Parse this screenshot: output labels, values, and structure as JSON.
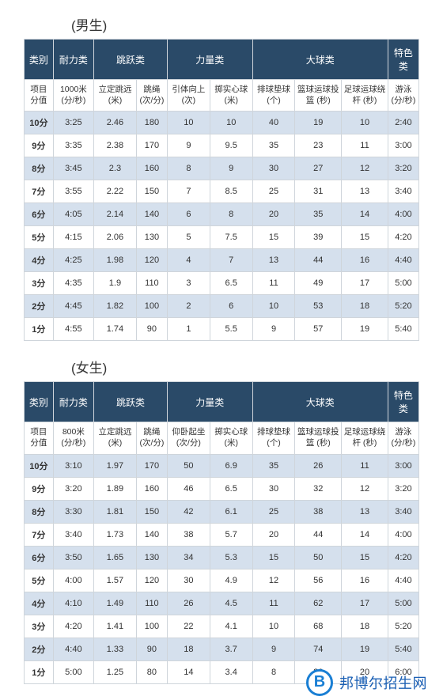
{
  "titles": {
    "male": "(男生)",
    "female": "(女生)"
  },
  "categories": {
    "score": "类别",
    "endurance": "耐力类",
    "jump": "跳跃类",
    "strength": "力量类",
    "ball": "大球类",
    "special": "特色类"
  },
  "male": {
    "subheaders": {
      "score": "项目\n分值",
      "endurance": "1000米\n(分/秒)",
      "jump1": "立定跳远\n(米)",
      "jump2": "跳绳\n(次/分)",
      "str1": "引体向上\n(次)",
      "str2": "掷实心球\n(米)",
      "ball1": "排球垫球\n(个)",
      "ball2": "篮球运球投篮\n(秒)",
      "ball3": "足球运球绕杆\n(秒)",
      "special": "游泳\n(分/秒)"
    },
    "rows": [
      {
        "s": "10分",
        "v": [
          "3:25",
          "2.46",
          "180",
          "10",
          "10",
          "40",
          "19",
          "10",
          "2:40"
        ]
      },
      {
        "s": "9分",
        "v": [
          "3:35",
          "2.38",
          "170",
          "9",
          "9.5",
          "35",
          "23",
          "11",
          "3:00"
        ]
      },
      {
        "s": "8分",
        "v": [
          "3:45",
          "2.3",
          "160",
          "8",
          "9",
          "30",
          "27",
          "12",
          "3:20"
        ]
      },
      {
        "s": "7分",
        "v": [
          "3:55",
          "2.22",
          "150",
          "7",
          "8.5",
          "25",
          "31",
          "13",
          "3:40"
        ]
      },
      {
        "s": "6分",
        "v": [
          "4:05",
          "2.14",
          "140",
          "6",
          "8",
          "20",
          "35",
          "14",
          "4:00"
        ]
      },
      {
        "s": "5分",
        "v": [
          "4:15",
          "2.06",
          "130",
          "5",
          "7.5",
          "15",
          "39",
          "15",
          "4:20"
        ]
      },
      {
        "s": "4分",
        "v": [
          "4:25",
          "1.98",
          "120",
          "4",
          "7",
          "13",
          "44",
          "16",
          "4:40"
        ]
      },
      {
        "s": "3分",
        "v": [
          "4:35",
          "1.9",
          "110",
          "3",
          "6.5",
          "11",
          "49",
          "17",
          "5:00"
        ]
      },
      {
        "s": "2分",
        "v": [
          "4:45",
          "1.82",
          "100",
          "2",
          "6",
          "10",
          "53",
          "18",
          "5:20"
        ]
      },
      {
        "s": "1分",
        "v": [
          "4:55",
          "1.74",
          "90",
          "1",
          "5.5",
          "9",
          "57",
          "19",
          "5:40"
        ]
      }
    ]
  },
  "female": {
    "subheaders": {
      "score": "项目\n分值",
      "endurance": "800米\n(分/秒)",
      "jump1": "立定跳远\n(米)",
      "jump2": "跳绳\n(次/分)",
      "str1": "仰卧起坐\n(次/分)",
      "str2": "掷实心球\n(米)",
      "ball1": "排球垫球\n(个)",
      "ball2": "篮球运球投篮\n(秒)",
      "ball3": "足球运球绕杆\n(秒)",
      "special": "游泳\n(分/秒)"
    },
    "rows": [
      {
        "s": "10分",
        "v": [
          "3:10",
          "1.97",
          "170",
          "50",
          "6.9",
          "35",
          "26",
          "11",
          "3:00"
        ]
      },
      {
        "s": "9分",
        "v": [
          "3:20",
          "1.89",
          "160",
          "46",
          "6.5",
          "30",
          "32",
          "12",
          "3:20"
        ]
      },
      {
        "s": "8分",
        "v": [
          "3:30",
          "1.81",
          "150",
          "42",
          "6.1",
          "25",
          "38",
          "13",
          "3:40"
        ]
      },
      {
        "s": "7分",
        "v": [
          "3:40",
          "1.73",
          "140",
          "38",
          "5.7",
          "20",
          "44",
          "14",
          "4:00"
        ]
      },
      {
        "s": "6分",
        "v": [
          "3:50",
          "1.65",
          "130",
          "34",
          "5.3",
          "15",
          "50",
          "15",
          "4:20"
        ]
      },
      {
        "s": "5分",
        "v": [
          "4:00",
          "1.57",
          "120",
          "30",
          "4.9",
          "12",
          "56",
          "16",
          "4:40"
        ]
      },
      {
        "s": "4分",
        "v": [
          "4:10",
          "1.49",
          "110",
          "26",
          "4.5",
          "11",
          "62",
          "17",
          "5:00"
        ]
      },
      {
        "s": "3分",
        "v": [
          "4:20",
          "1.41",
          "100",
          "22",
          "4.1",
          "10",
          "68",
          "18",
          "5:20"
        ]
      },
      {
        "s": "2分",
        "v": [
          "4:40",
          "1.33",
          "90",
          "18",
          "3.7",
          "9",
          "74",
          "19",
          "5:40"
        ]
      },
      {
        "s": "1分",
        "v": [
          "5:00",
          "1.25",
          "80",
          "14",
          "3.4",
          "8",
          "80",
          "20",
          "6:00"
        ]
      }
    ]
  },
  "watermark": {
    "badge": "B",
    "text": "邦博尔招生网"
  },
  "styling": {
    "header_bg": "#2a4a68",
    "header_fg": "#ffffff",
    "row_even_bg": "#d5e0ed",
    "row_odd_bg": "#ffffff",
    "border_color": "#cfd5db",
    "watermark_color": "#1a5fb4",
    "badge_border": "#1a7fd4",
    "title_fontsize": 17,
    "cell_fontsize": 11
  }
}
